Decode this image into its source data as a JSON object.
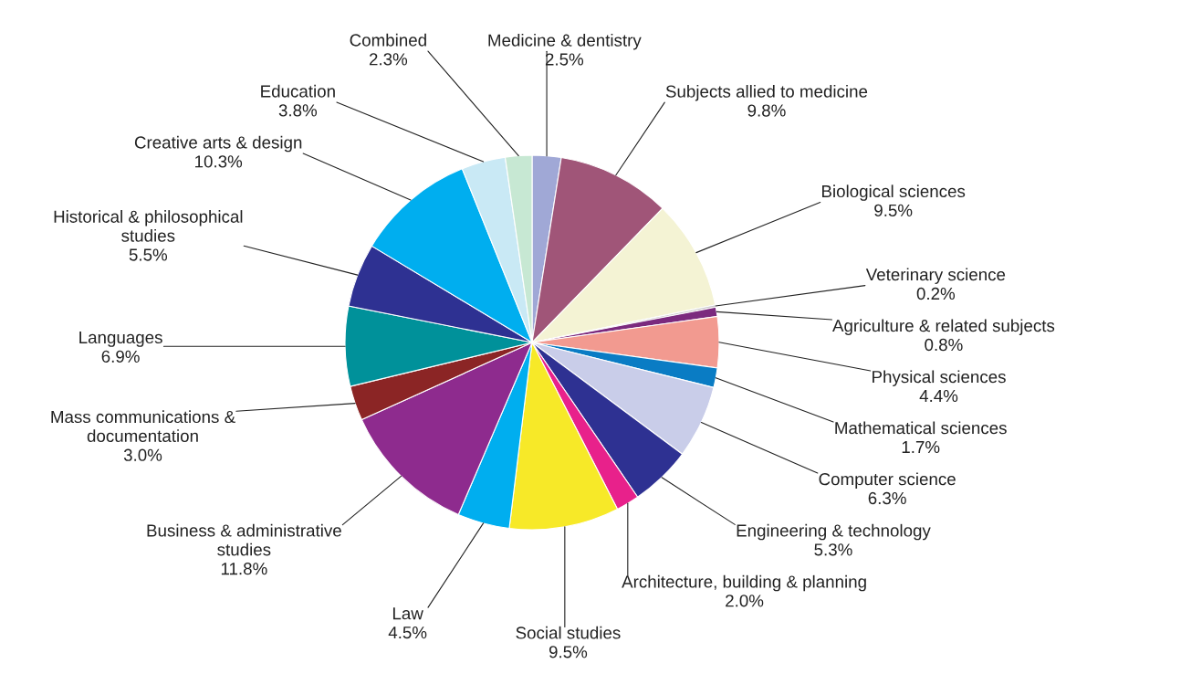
{
  "chart_data": {
    "type": "pie",
    "categories": [
      "Medicine & dentistry",
      "Subjects allied to medicine",
      "Biological sciences",
      "Veterinary science",
      "Agriculture & related subjects",
      "Physical sciences",
      "Mathematical sciences",
      "Computer science",
      "Engineering & technology",
      "Architecture, building & planning",
      "Social studies",
      "Law",
      "Business & administrative\nstudies",
      "Mass communications &\ndocumentation",
      "Languages",
      "Historical & philosophical\nstudies",
      "Creative arts & design",
      "Education",
      "Combined"
    ],
    "values": [
      2.5,
      9.8,
      9.5,
      0.2,
      0.8,
      4.4,
      1.7,
      6.3,
      5.3,
      2.0,
      9.5,
      4.5,
      11.8,
      3.0,
      6.9,
      5.5,
      10.3,
      3.8,
      2.3
    ],
    "value_labels": [
      "2.5%",
      "9.8%",
      "9.5%",
      "0.2%",
      "0.8%",
      "4.4%",
      "1.7%",
      "6.3%",
      "5.3%",
      "2.0%",
      "9.5%",
      "4.5%",
      "11.8%",
      "3.0%",
      "6.9%",
      "5.5%",
      "10.3%",
      "3.8%",
      "2.3%"
    ],
    "colors": [
      "#a0a8d6",
      "#a05578",
      "#f4f3d4",
      "#c9c9c9",
      "#7b2a7e",
      "#f29a90",
      "#0a7cc4",
      "#c9cde9",
      "#2e3192",
      "#e8218b",
      "#f7e928",
      "#00aeef",
      "#8e2b8e",
      "#8b2525",
      "#00919a",
      "#2e3192",
      "#00aeef",
      "#c9e9f5",
      "#c7e8d3"
    ]
  }
}
